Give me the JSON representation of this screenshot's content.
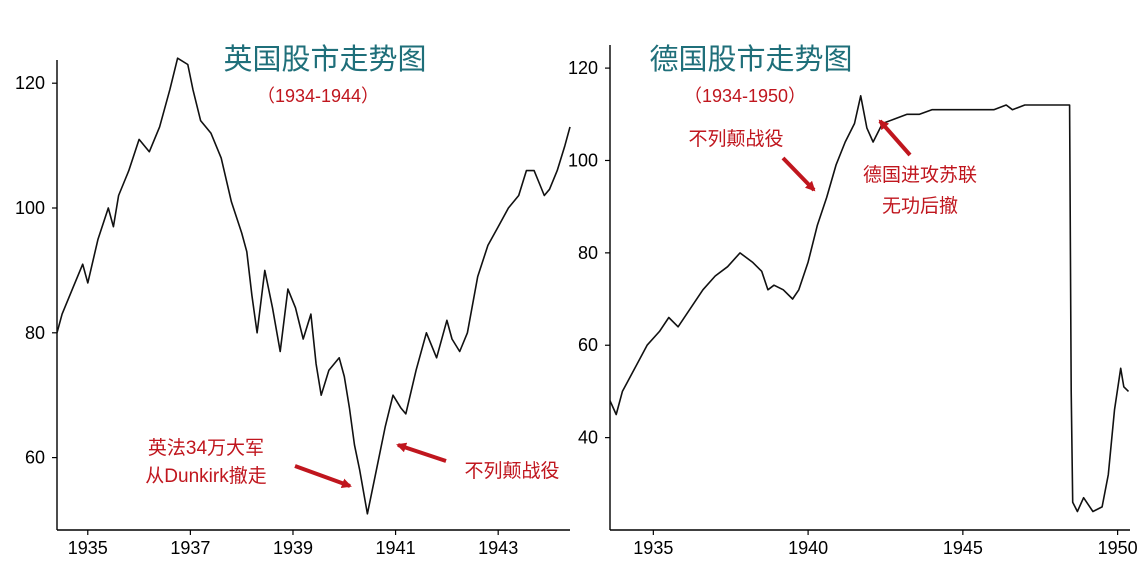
{
  "chart_data": [
    {
      "type": "line",
      "title": "英国股市走势图",
      "subtitle": "（1934-1944）",
      "xlim": [
        1934.4,
        1944.4
      ],
      "ylim": [
        50,
        125
      ],
      "x_ticks": [
        "1935",
        "1937",
        "1939",
        "1941",
        "1943"
      ],
      "y_ticks": [
        "60",
        "80",
        "100",
        "120"
      ],
      "series": [
        {
          "points": [
            [
              1934.4,
              80
            ],
            [
              1934.5,
              83
            ],
            [
              1934.7,
              87
            ],
            [
              1934.9,
              91
            ],
            [
              1935.0,
              88
            ],
            [
              1935.2,
              95
            ],
            [
              1935.4,
              100
            ],
            [
              1935.5,
              97
            ],
            [
              1935.6,
              102
            ],
            [
              1935.8,
              106
            ],
            [
              1936.0,
              111
            ],
            [
              1936.2,
              109
            ],
            [
              1936.4,
              113
            ],
            [
              1936.6,
              119
            ],
            [
              1936.75,
              124
            ],
            [
              1936.95,
              123
            ],
            [
              1937.05,
              119
            ],
            [
              1937.2,
              114
            ],
            [
              1937.4,
              112
            ],
            [
              1937.6,
              108
            ],
            [
              1937.8,
              101
            ],
            [
              1938.0,
              96
            ],
            [
              1938.1,
              93
            ],
            [
              1938.2,
              86
            ],
            [
              1938.3,
              80
            ],
            [
              1938.45,
              90
            ],
            [
              1938.6,
              84
            ],
            [
              1938.75,
              77
            ],
            [
              1938.9,
              87
            ],
            [
              1939.05,
              84
            ],
            [
              1939.2,
              79
            ],
            [
              1939.35,
              83
            ],
            [
              1939.45,
              75
            ],
            [
              1939.55,
              70
            ],
            [
              1939.7,
              74
            ],
            [
              1939.9,
              76
            ],
            [
              1940.0,
              73
            ],
            [
              1940.1,
              68
            ],
            [
              1940.2,
              62
            ],
            [
              1940.3,
              58
            ],
            [
              1940.45,
              51
            ],
            [
              1940.6,
              57
            ],
            [
              1940.8,
              65
            ],
            [
              1940.95,
              70
            ],
            [
              1941.1,
              68
            ],
            [
              1941.2,
              67
            ],
            [
              1941.4,
              74
            ],
            [
              1941.6,
              80
            ],
            [
              1941.8,
              76
            ],
            [
              1942.0,
              82
            ],
            [
              1942.1,
              79
            ],
            [
              1942.25,
              77
            ],
            [
              1942.4,
              80
            ],
            [
              1942.6,
              89
            ],
            [
              1942.8,
              94
            ],
            [
              1943.0,
              97
            ],
            [
              1943.2,
              100
            ],
            [
              1943.4,
              102
            ],
            [
              1943.55,
              106
            ],
            [
              1943.7,
              106
            ],
            [
              1943.8,
              104
            ],
            [
              1943.9,
              102
            ],
            [
              1944.0,
              103
            ],
            [
              1944.15,
              106
            ],
            [
              1944.3,
              110
            ],
            [
              1944.4,
              113
            ]
          ]
        }
      ],
      "annotations": [
        {
          "text": "英法34万大军",
          "points_to": [
            1940.45,
            51
          ]
        },
        {
          "text": "从Dunkirk撤走",
          "points_to": [
            1940.45,
            51
          ]
        },
        {
          "text": "不列颠战役",
          "points_to": [
            1940.75,
            63
          ]
        }
      ]
    },
    {
      "type": "line",
      "title": "德国股市走势图",
      "subtitle": "（1934-1950）",
      "xlim": [
        1933.6,
        1950.4
      ],
      "ylim": [
        20,
        125
      ],
      "x_ticks": [
        "1935",
        "1940",
        "1945",
        "1950"
      ],
      "y_ticks": [
        "40",
        "60",
        "80",
        "100",
        "120"
      ],
      "series": [
        {
          "points": [
            [
              1933.6,
              48
            ],
            [
              1933.8,
              45
            ],
            [
              1934.0,
              50
            ],
            [
              1934.4,
              55
            ],
            [
              1934.8,
              60
            ],
            [
              1935.2,
              63
            ],
            [
              1935.5,
              66
            ],
            [
              1935.8,
              64
            ],
            [
              1936.2,
              68
            ],
            [
              1936.6,
              72
            ],
            [
              1937.0,
              75
            ],
            [
              1937.4,
              77
            ],
            [
              1937.8,
              80
            ],
            [
              1938.2,
              78
            ],
            [
              1938.5,
              76
            ],
            [
              1938.7,
              72
            ],
            [
              1938.9,
              73
            ],
            [
              1939.2,
              72
            ],
            [
              1939.5,
              70
            ],
            [
              1939.7,
              72
            ],
            [
              1940.0,
              78
            ],
            [
              1940.3,
              86
            ],
            [
              1940.6,
              92
            ],
            [
              1940.9,
              99
            ],
            [
              1941.2,
              104
            ],
            [
              1941.5,
              108
            ],
            [
              1941.7,
              114
            ],
            [
              1941.9,
              107
            ],
            [
              1942.1,
              104
            ],
            [
              1942.4,
              108
            ],
            [
              1942.8,
              109
            ],
            [
              1943.2,
              110
            ],
            [
              1943.6,
              110
            ],
            [
              1944.0,
              111
            ],
            [
              1945.0,
              111
            ],
            [
              1946.0,
              111
            ],
            [
              1946.4,
              112
            ],
            [
              1946.6,
              111
            ],
            [
              1947.0,
              112
            ],
            [
              1948.0,
              112
            ],
            [
              1948.45,
              112
            ],
            [
              1948.5,
              50
            ],
            [
              1948.55,
              26
            ],
            [
              1948.7,
              24
            ],
            [
              1948.9,
              27
            ],
            [
              1949.2,
              24
            ],
            [
              1949.5,
              25
            ],
            [
              1949.7,
              32
            ],
            [
              1949.9,
              46
            ],
            [
              1950.1,
              55
            ],
            [
              1950.2,
              51
            ],
            [
              1950.35,
              50
            ]
          ]
        }
      ],
      "annotations": [
        {
          "text": "不列颠战役",
          "points_to": [
            1940.5,
            91
          ]
        },
        {
          "text": "德国进攻苏联",
          "points_to": [
            1942.1,
            104
          ]
        },
        {
          "text": "无功后撤",
          "points_to": [
            1942.1,
            104
          ]
        }
      ]
    }
  ]
}
